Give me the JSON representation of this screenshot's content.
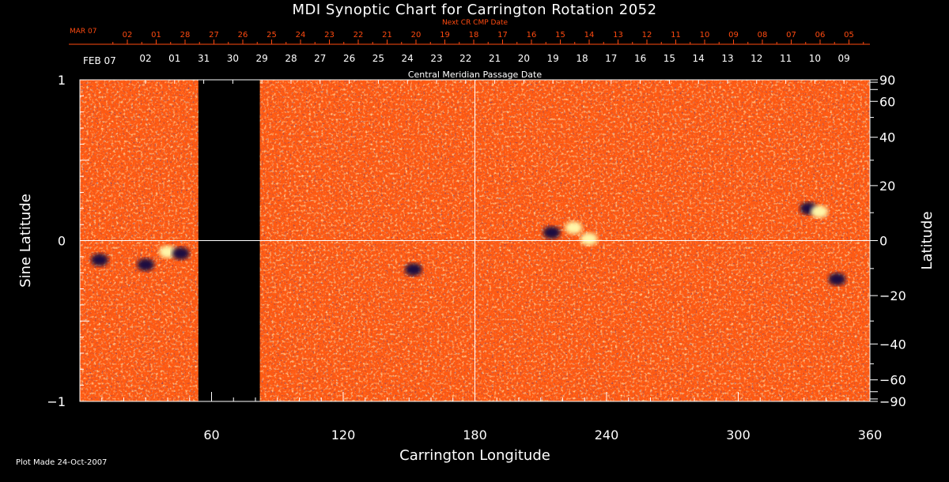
{
  "title": "MDI Synoptic Chart for Carrington Rotation 2052",
  "footer_note": "Plot Made 24-Oct-2007",
  "colors": {
    "background": "#000000",
    "surface": "#ff5a12",
    "positive": "#fff6a8",
    "negative": "#1a1040",
    "top_labels": "#ff4a10",
    "text": "#ffffff"
  },
  "chart_data": {
    "type": "heatmap",
    "title": "MDI Synoptic Chart for Carrington Rotation 2052",
    "xlabel": "Carrington Longitude",
    "ylabel_left": "Sine Latitude",
    "ylabel_right": "Latitude",
    "xlim": [
      0,
      360
    ],
    "ylim": [
      -1,
      1
    ],
    "x_ticks": [
      60,
      120,
      180,
      240,
      300,
      360
    ],
    "y_ticks_left": [
      {
        "value": 1,
        "label": "1"
      },
      {
        "value": 0,
        "label": "0"
      },
      {
        "value": -1,
        "label": "−1"
      }
    ],
    "y_ticks_right": [
      {
        "deg": 90,
        "label": "90"
      },
      {
        "deg": 60,
        "label": "60"
      },
      {
        "deg": 40,
        "label": "40"
      },
      {
        "deg": 20,
        "label": "20"
      },
      {
        "deg": 0,
        "label": "0"
      },
      {
        "deg": -20,
        "label": "−20"
      },
      {
        "deg": -40,
        "label": "−40"
      },
      {
        "deg": -60,
        "label": "−60"
      },
      {
        "deg": -90,
        "label": "−90"
      }
    ],
    "data_gap_longitude": [
      54,
      82
    ],
    "crosshair": {
      "longitude": 180,
      "sine_latitude": 0
    },
    "next_cr_axis": {
      "title": "Next CR CMP Date",
      "month_label": "MAR 07",
      "labels": [
        "02",
        "01",
        "28",
        "27",
        "26",
        "25",
        "24",
        "23",
        "22",
        "21",
        "20",
        "19",
        "18",
        "17",
        "16",
        "15",
        "14",
        "13",
        "12",
        "11",
        "10",
        "09",
        "08",
        "07",
        "06",
        "05"
      ]
    },
    "cmp_axis": {
      "title": "Central Meridian Passage Date",
      "month_label": "FEB 07",
      "labels": [
        "02",
        "01",
        "31",
        "30",
        "29",
        "28",
        "27",
        "26",
        "25",
        "24",
        "23",
        "22",
        "21",
        "20",
        "19",
        "18",
        "17",
        "16",
        "15",
        "14",
        "13",
        "12",
        "11",
        "10",
        "09"
      ]
    },
    "active_regions": [
      {
        "longitude": 9,
        "sine_latitude": -0.12,
        "polarity": "negative"
      },
      {
        "longitude": 40,
        "sine_latitude": -0.07,
        "polarity": "positive"
      },
      {
        "longitude": 46,
        "sine_latitude": -0.08,
        "polarity": "negative"
      },
      {
        "longitude": 30,
        "sine_latitude": -0.15,
        "polarity": "negative"
      },
      {
        "longitude": 152,
        "sine_latitude": -0.18,
        "polarity": "negative"
      },
      {
        "longitude": 215,
        "sine_latitude": 0.05,
        "polarity": "negative"
      },
      {
        "longitude": 225,
        "sine_latitude": 0.08,
        "polarity": "positive"
      },
      {
        "longitude": 232,
        "sine_latitude": 0.01,
        "polarity": "positive"
      },
      {
        "longitude": 332,
        "sine_latitude": 0.2,
        "polarity": "negative"
      },
      {
        "longitude": 337,
        "sine_latitude": 0.18,
        "polarity": "positive"
      },
      {
        "longitude": 345,
        "sine_latitude": -0.24,
        "polarity": "negative"
      }
    ]
  }
}
